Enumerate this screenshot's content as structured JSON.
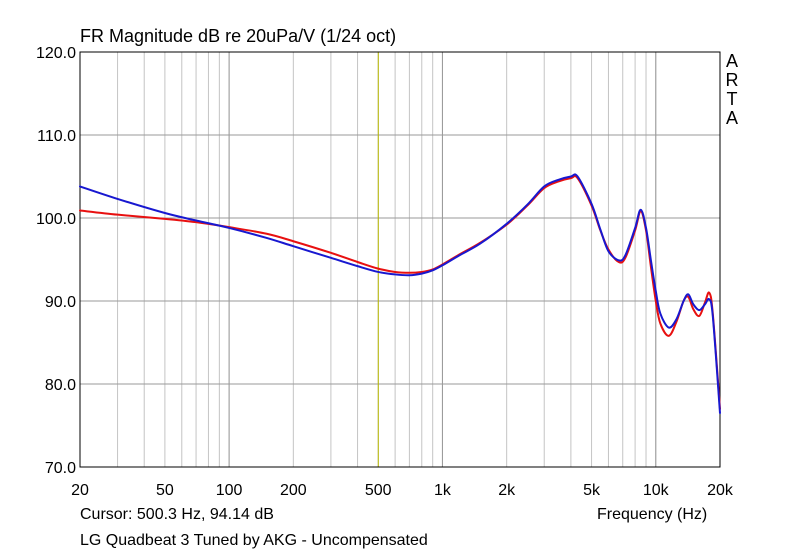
{
  "app": {
    "title": "FR Magnitude dB re 20uPa/V (1/24 oct)",
    "cursor_readout": "Cursor: 500.3 Hz, 94.14 dB",
    "caption": "LG Quadbeat 3 Tuned by AKG - Uncompensated",
    "logo_letters": [
      "A",
      "R",
      "T",
      "A"
    ]
  },
  "chart_data": {
    "type": "line",
    "title": "FR Magnitude dB re 20uPa/V (1/24 oct)",
    "xlabel": "Frequency (Hz)",
    "ylabel": "",
    "x_scale": "log",
    "xlim": [
      20,
      20000
    ],
    "ylim": [
      70,
      120
    ],
    "grid": true,
    "y_ticks": [
      70,
      80,
      90,
      100,
      110,
      120
    ],
    "y_tick_labels": [
      "70.0",
      "80.0",
      "90.0",
      "100.0",
      "110.0",
      "120.0"
    ],
    "x_ticks": [
      20,
      50,
      100,
      200,
      500,
      1000,
      2000,
      5000,
      10000,
      20000
    ],
    "x_tick_labels": [
      "20",
      "50",
      "100",
      "200",
      "500",
      "1k",
      "2k",
      "5k",
      "10k",
      "20k"
    ],
    "cursor": {
      "x": 500.3,
      "y": 94.14,
      "color": "#b8b800"
    },
    "series": [
      {
        "color": "#e81010",
        "points": [
          [
            20,
            100.9
          ],
          [
            30,
            100.4
          ],
          [
            50,
            99.9
          ],
          [
            70,
            99.5
          ],
          [
            100,
            98.9
          ],
          [
            150,
            98.1
          ],
          [
            200,
            97.2
          ],
          [
            300,
            95.8
          ],
          [
            400,
            94.7
          ],
          [
            500,
            93.9
          ],
          [
            600,
            93.5
          ],
          [
            700,
            93.4
          ],
          [
            800,
            93.5
          ],
          [
            900,
            93.8
          ],
          [
            1000,
            94.4
          ],
          [
            1200,
            95.6
          ],
          [
            1500,
            97.0
          ],
          [
            2000,
            99.2
          ],
          [
            2500,
            101.5
          ],
          [
            3000,
            103.6
          ],
          [
            3500,
            104.4
          ],
          [
            4000,
            104.8
          ],
          [
            4300,
            104.8
          ],
          [
            5000,
            101.5
          ],
          [
            5500,
            98.5
          ],
          [
            6000,
            96.2
          ],
          [
            6700,
            94.7
          ],
          [
            7200,
            95.2
          ],
          [
            8000,
            98.5
          ],
          [
            8500,
            100.8
          ],
          [
            9000,
            98.5
          ],
          [
            9500,
            94.0
          ],
          [
            10000,
            90.0
          ],
          [
            10500,
            87.3
          ],
          [
            11500,
            85.8
          ],
          [
            12500,
            87.5
          ],
          [
            13500,
            90.0
          ],
          [
            14200,
            90.5
          ],
          [
            15000,
            89.0
          ],
          [
            16000,
            88.2
          ],
          [
            17000,
            89.8
          ],
          [
            17800,
            91.0
          ],
          [
            18500,
            88.5
          ],
          [
            20000,
            77.0
          ]
        ]
      },
      {
        "color": "#1818d0",
        "points": [
          [
            20,
            103.8
          ],
          [
            30,
            102.3
          ],
          [
            50,
            100.6
          ],
          [
            70,
            99.7
          ],
          [
            100,
            98.8
          ],
          [
            150,
            97.6
          ],
          [
            200,
            96.6
          ],
          [
            300,
            95.2
          ],
          [
            400,
            94.2
          ],
          [
            500,
            93.5
          ],
          [
            600,
            93.2
          ],
          [
            700,
            93.1
          ],
          [
            800,
            93.3
          ],
          [
            900,
            93.7
          ],
          [
            1000,
            94.3
          ],
          [
            1200,
            95.5
          ],
          [
            1500,
            96.9
          ],
          [
            2000,
            99.3
          ],
          [
            2500,
            101.6
          ],
          [
            3000,
            103.8
          ],
          [
            3500,
            104.6
          ],
          [
            4000,
            105.0
          ],
          [
            4300,
            105.0
          ],
          [
            5000,
            101.7
          ],
          [
            5500,
            98.6
          ],
          [
            6000,
            96.0
          ],
          [
            6700,
            94.9
          ],
          [
            7200,
            95.5
          ],
          [
            8000,
            98.8
          ],
          [
            8500,
            101.0
          ],
          [
            9000,
            98.8
          ],
          [
            9500,
            94.8
          ],
          [
            10000,
            91.2
          ],
          [
            10500,
            88.5
          ],
          [
            11500,
            86.8
          ],
          [
            12500,
            87.8
          ],
          [
            13500,
            90.0
          ],
          [
            14200,
            90.8
          ],
          [
            15000,
            89.6
          ],
          [
            16000,
            88.9
          ],
          [
            17000,
            89.6
          ],
          [
            17800,
            90.2
          ],
          [
            18500,
            88.2
          ],
          [
            20000,
            76.5
          ]
        ]
      }
    ]
  }
}
